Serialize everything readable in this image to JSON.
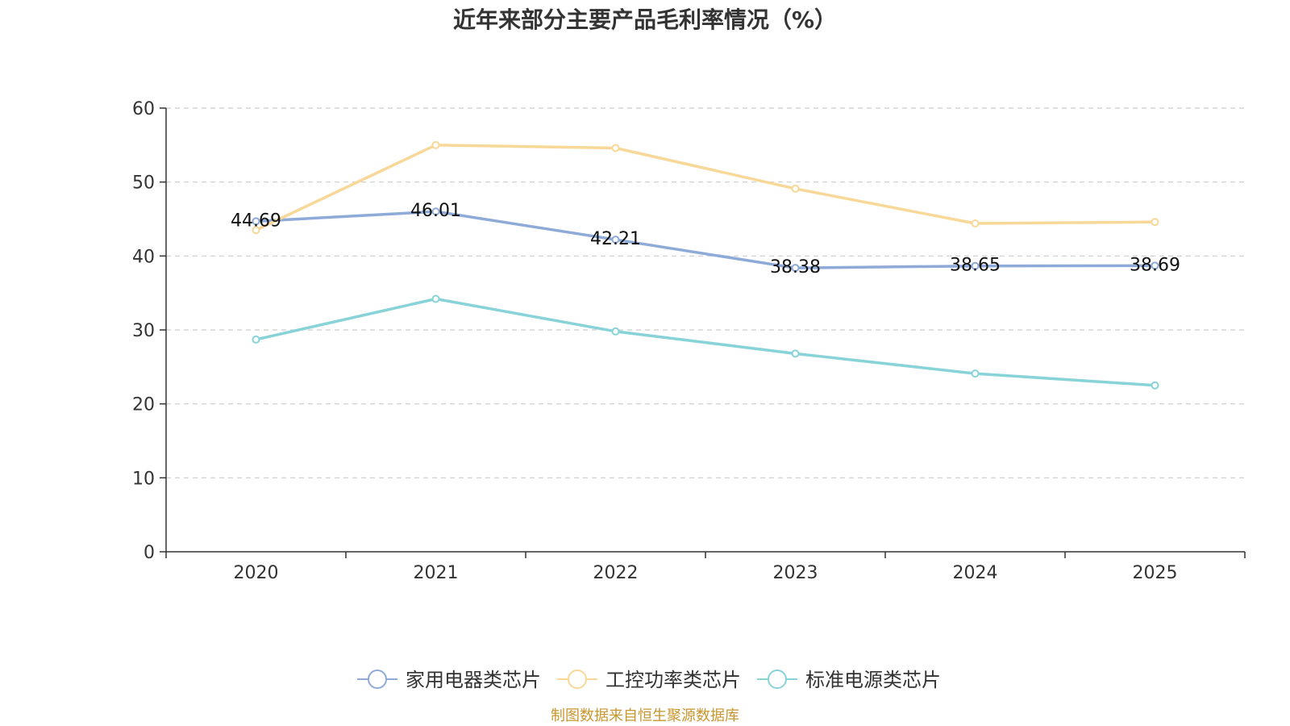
{
  "chart_data": {
    "type": "line",
    "title": "近年来部分主要产品毛利率情况（%）",
    "categories": [
      "2020",
      "2021",
      "2022",
      "2023",
      "2024",
      "2025"
    ],
    "ylim": [
      0,
      60
    ],
    "yticks": [
      0,
      10,
      20,
      30,
      40,
      50,
      60
    ],
    "grid": true,
    "legend_position": "bottom",
    "series": [
      {
        "name": "家用电器类芯片",
        "color": "#8eaad8",
        "values": [
          44.69,
          46.01,
          42.21,
          38.38,
          38.65,
          38.69
        ],
        "show_labels": true,
        "labels": [
          "44.69",
          "46.01",
          "42.21",
          "38.38",
          "38.65",
          "38.69"
        ]
      },
      {
        "name": "工控功率类芯片",
        "color": "#f8d898",
        "values": [
          43.5,
          55.0,
          54.6,
          49.1,
          44.4,
          44.6
        ],
        "show_labels": false
      },
      {
        "name": "标准电源类芯片",
        "color": "#88d3d8",
        "values": [
          28.7,
          34.2,
          29.8,
          26.8,
          24.1,
          22.5
        ],
        "show_labels": false
      }
    ],
    "source": "制图数据来自恒生聚源数据库",
    "source_color": "#c8962e"
  }
}
